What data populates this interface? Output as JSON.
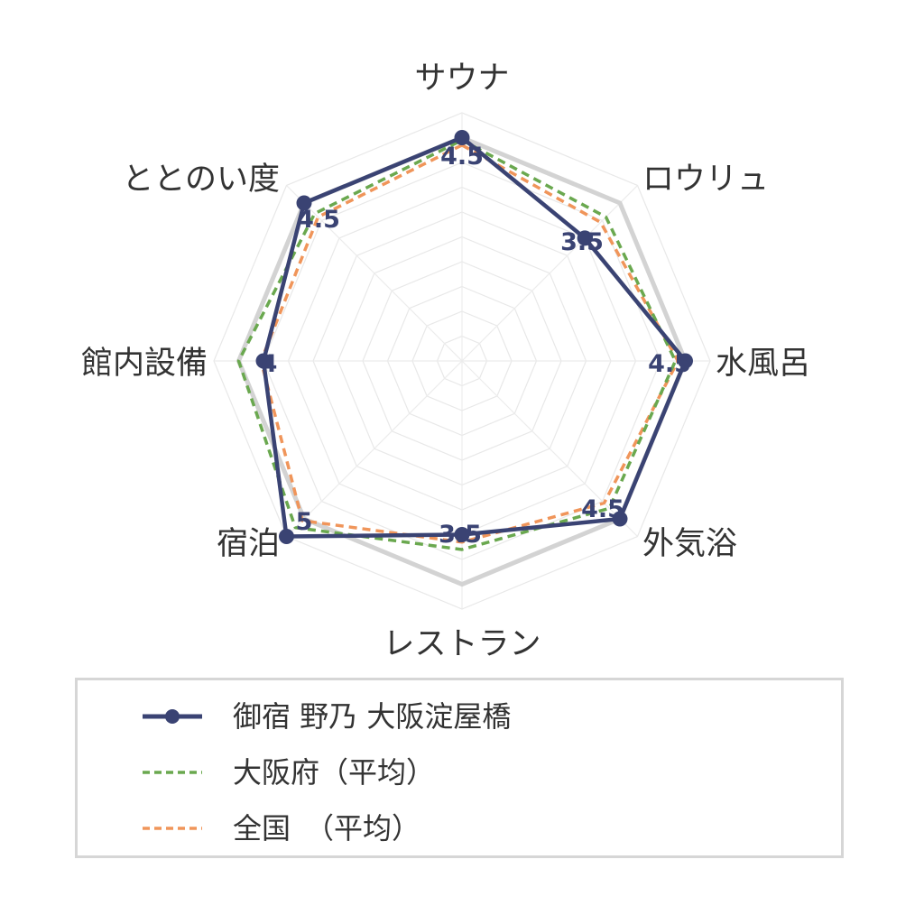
{
  "chart_data": {
    "type": "radar",
    "axes": [
      "サウナ",
      "ロウリュ",
      "水風呂",
      "外気浴",
      "レストラン",
      "宿泊",
      "館内設備",
      "ととのい度"
    ],
    "value_labels": [
      "4.5",
      "3.5",
      "4.5",
      "4.5",
      "3.5",
      "5",
      "4",
      "4.5"
    ],
    "rmax": 5,
    "series": [
      {
        "name": "御宿 野乃 大阪淀屋橋",
        "values": [
          4.5,
          3.5,
          4.5,
          4.5,
          3.5,
          5,
          4,
          4.5
        ],
        "color": "#3a4373",
        "style": "solid"
      },
      {
        "name": "大阪府（平均）",
        "values": [
          4.45,
          4.1,
          4.3,
          4.2,
          3.8,
          4.75,
          4.5,
          4.2
        ],
        "color": "#6aa84f",
        "style": "dashed"
      },
      {
        "name": "全国　（平均）",
        "values": [
          4.35,
          3.95,
          4.35,
          4.05,
          3.65,
          4.55,
          4.05,
          4.1
        ],
        "color": "#f0955a",
        "style": "dashed"
      }
    ],
    "grid": true
  }
}
